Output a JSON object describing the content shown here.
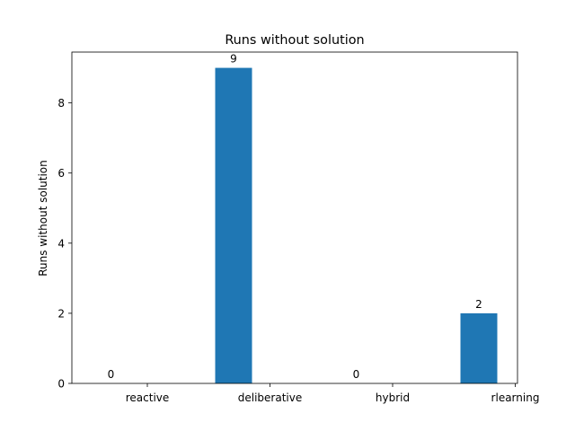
{
  "chart_data": {
    "type": "bar",
    "title": "Runs without solution",
    "xlabel": "",
    "ylabel": "Runs without solution",
    "categories": [
      "reactive",
      "deliberative",
      "hybrid",
      "rlearning"
    ],
    "values": [
      0,
      9,
      0,
      2
    ],
    "data_labels": [
      "0",
      "9",
      "0",
      "2"
    ],
    "ylim": [
      0,
      9.45
    ],
    "yticks": [
      0,
      2,
      4,
      6,
      8
    ],
    "bar_color": "#1f77b4",
    "grid": false,
    "legend": "none"
  }
}
